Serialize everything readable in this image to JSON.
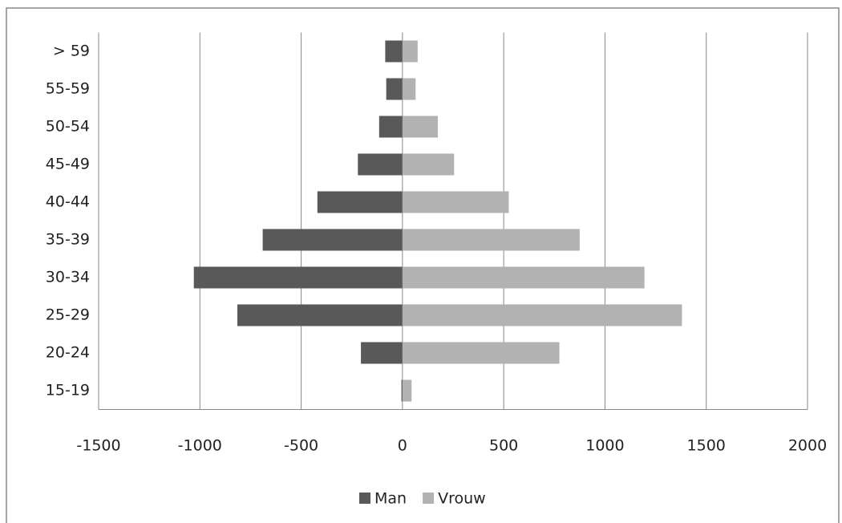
{
  "chart_data": {
    "type": "bar",
    "orientation": "horizontal",
    "stacked": true,
    "categories": [
      "15-19",
      "20-24",
      "25-29",
      "30-34",
      "35-39",
      "40-44",
      "45-49",
      "50-54",
      "55-59",
      "> 59"
    ],
    "series": [
      {
        "name": "Man",
        "color": "#595959",
        "values": [
          -5,
          -205,
          -815,
          -1030,
          -690,
          -420,
          -220,
          -115,
          -80,
          -85
        ]
      },
      {
        "name": "Vrouw",
        "color": "#b2b2b2",
        "values": [
          45,
          775,
          1380,
          1195,
          875,
          525,
          255,
          175,
          65,
          75
        ]
      }
    ],
    "xlim": [
      -1500,
      2000
    ],
    "xticks": [
      -1500,
      -1000,
      -500,
      0,
      500,
      1000,
      1500,
      2000
    ],
    "grid": true,
    "legend": "bottom"
  }
}
